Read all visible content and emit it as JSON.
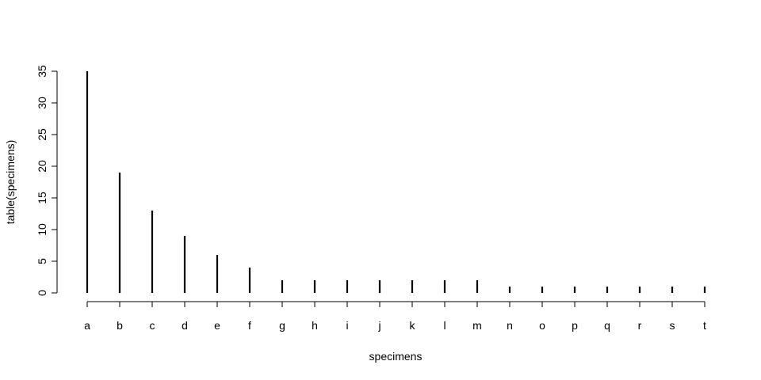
{
  "chart_data": {
    "type": "bar",
    "categories": [
      "a",
      "b",
      "c",
      "d",
      "e",
      "f",
      "g",
      "h",
      "i",
      "j",
      "k",
      "l",
      "m",
      "n",
      "o",
      "p",
      "q",
      "r",
      "s",
      "t"
    ],
    "values": [
      35,
      19,
      13,
      9,
      6,
      4,
      2,
      2,
      2,
      2,
      2,
      2,
      2,
      1,
      1,
      1,
      1,
      1,
      1,
      1
    ],
    "xlabel": "specimens",
    "ylabel": "table(specimens)",
    "ylim": [
      0,
      35
    ],
    "yticks": [
      0,
      5,
      10,
      15,
      20,
      25,
      30,
      35
    ],
    "grid": false,
    "color": "#000000"
  }
}
